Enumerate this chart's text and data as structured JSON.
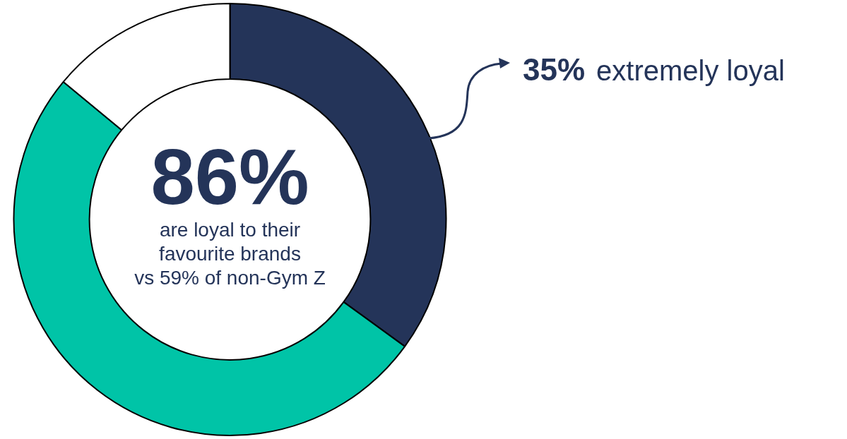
{
  "chart_data": {
    "type": "donut",
    "categories": [
      "extremely loyal",
      null,
      null
    ],
    "values": [
      35,
      51,
      14
    ],
    "colors": [
      "#243459",
      "#00c4a7",
      "#ffffff"
    ],
    "value_labels": [
      "35%",
      null,
      null
    ],
    "annotations": [
      "86%",
      "are loyal to their\nfavourite brands\nvs 59% of non-Gym Z"
    ],
    "legend": false
  }
}
